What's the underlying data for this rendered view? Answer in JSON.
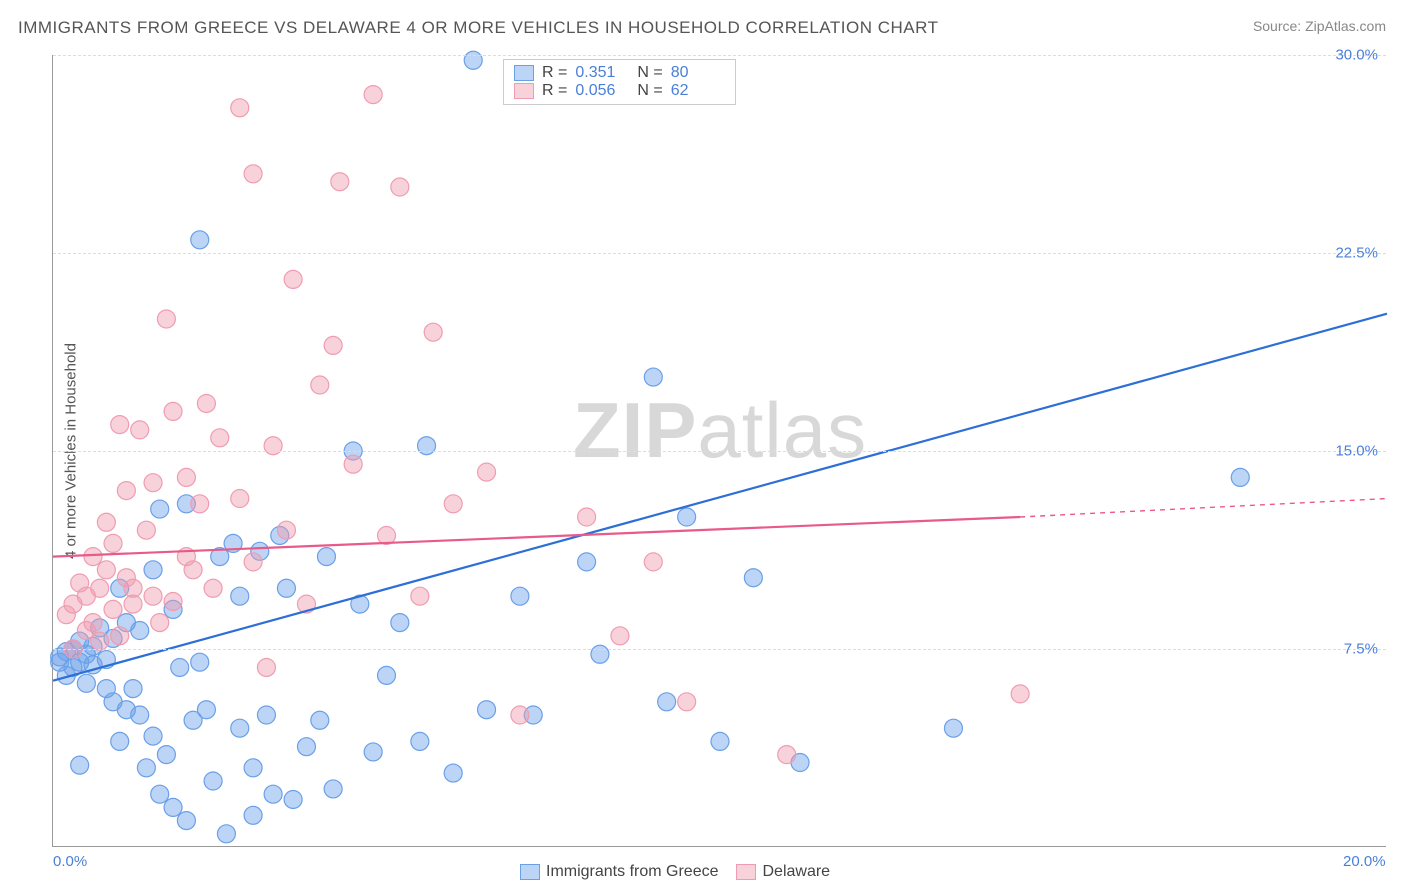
{
  "title": "IMMIGRANTS FROM GREECE VS DELAWARE 4 OR MORE VEHICLES IN HOUSEHOLD CORRELATION CHART",
  "source": "Source: ZipAtlas.com",
  "ylabel": "4 or more Vehicles in Household",
  "watermark": {
    "zip": "ZIP",
    "atlas": "atlas"
  },
  "chart": {
    "type": "scatter-with-regression",
    "background_color": "#ffffff",
    "grid_color": "#dddddd",
    "axis_color": "#999999",
    "tick_label_color": "#4a7fd8",
    "text_color": "#555555",
    "title_fontsize": 17,
    "label_fontsize": 15,
    "xlim": [
      0,
      20
    ],
    "ylim": [
      0,
      30
    ],
    "xtick_labels": [
      "0.0%",
      "20.0%"
    ],
    "xtick_positions": [
      0,
      20
    ],
    "ytick_labels": [
      "7.5%",
      "15.0%",
      "22.5%",
      "30.0%"
    ],
    "ytick_positions": [
      7.5,
      15.0,
      22.5,
      30.0
    ],
    "marker_radius": 9,
    "marker_opacity": 0.55,
    "line_width": 2.2,
    "series": [
      {
        "name": "Immigrants from Greece",
        "key": "greece",
        "color": "#6aa0e8",
        "fill": "rgba(106,160,232,0.45)",
        "line_color": "#2d6fd6",
        "R": "0.351",
        "N": "80",
        "regression": {
          "x1": 0,
          "y1": 6.3,
          "x2": 20,
          "y2": 20.2
        },
        "points": [
          [
            0.1,
            7.0
          ],
          [
            0.1,
            7.2
          ],
          [
            0.2,
            6.5
          ],
          [
            0.3,
            6.8
          ],
          [
            0.2,
            7.4
          ],
          [
            0.4,
            7.0
          ],
          [
            0.3,
            7.5
          ],
          [
            0.4,
            7.8
          ],
          [
            0.5,
            6.2
          ],
          [
            0.5,
            7.3
          ],
          [
            0.6,
            6.9
          ],
          [
            0.6,
            7.6
          ],
          [
            0.7,
            8.3
          ],
          [
            0.8,
            7.1
          ],
          [
            0.8,
            6.0
          ],
          [
            0.9,
            7.9
          ],
          [
            0.9,
            5.5
          ],
          [
            1.0,
            9.8
          ],
          [
            1.0,
            4.0
          ],
          [
            1.1,
            8.5
          ],
          [
            1.1,
            5.2
          ],
          [
            1.2,
            6.0
          ],
          [
            1.3,
            5.0
          ],
          [
            1.3,
            8.2
          ],
          [
            1.4,
            3.0
          ],
          [
            1.5,
            4.2
          ],
          [
            1.5,
            10.5
          ],
          [
            1.6,
            2.0
          ],
          [
            1.6,
            12.8
          ],
          [
            1.7,
            3.5
          ],
          [
            1.8,
            9.0
          ],
          [
            1.8,
            1.5
          ],
          [
            1.9,
            6.8
          ],
          [
            2.0,
            1.0
          ],
          [
            2.0,
            13.0
          ],
          [
            2.1,
            4.8
          ],
          [
            2.2,
            7.0
          ],
          [
            2.2,
            23.0
          ],
          [
            2.3,
            5.2
          ],
          [
            2.4,
            2.5
          ],
          [
            2.5,
            11.0
          ],
          [
            2.6,
            0.5
          ],
          [
            2.7,
            11.5
          ],
          [
            2.8,
            4.5
          ],
          [
            2.8,
            9.5
          ],
          [
            3.0,
            3.0
          ],
          [
            3.0,
            1.2
          ],
          [
            3.1,
            11.2
          ],
          [
            3.2,
            5.0
          ],
          [
            3.3,
            2.0
          ],
          [
            3.4,
            11.8
          ],
          [
            3.5,
            9.8
          ],
          [
            3.6,
            1.8
          ],
          [
            3.8,
            3.8
          ],
          [
            4.0,
            4.8
          ],
          [
            4.1,
            11.0
          ],
          [
            4.2,
            2.2
          ],
          [
            4.5,
            15.0
          ],
          [
            4.6,
            9.2
          ],
          [
            4.8,
            3.6
          ],
          [
            5.0,
            6.5
          ],
          [
            5.2,
            8.5
          ],
          [
            5.5,
            4.0
          ],
          [
            5.6,
            15.2
          ],
          [
            6.0,
            2.8
          ],
          [
            6.3,
            29.8
          ],
          [
            6.5,
            5.2
          ],
          [
            7.0,
            9.5
          ],
          [
            7.2,
            5.0
          ],
          [
            8.0,
            10.8
          ],
          [
            8.2,
            7.3
          ],
          [
            9.0,
            17.8
          ],
          [
            9.2,
            5.5
          ],
          [
            9.5,
            12.5
          ],
          [
            10.0,
            4.0
          ],
          [
            10.5,
            10.2
          ],
          [
            11.2,
            3.2
          ],
          [
            13.5,
            4.5
          ],
          [
            17.8,
            14.0
          ],
          [
            0.4,
            3.1
          ]
        ]
      },
      {
        "name": "Delaware",
        "key": "delaware",
        "color": "#f09cb0",
        "fill": "rgba(240,156,176,0.45)",
        "line_color": "#e85a8a",
        "R": "0.056",
        "N": "62",
        "regression": {
          "x1": 0,
          "y1": 11.0,
          "x2": 14.5,
          "y2": 12.5,
          "x_dash_to": 20,
          "y_dash_to": 13.2
        },
        "points": [
          [
            0.2,
            8.8
          ],
          [
            0.3,
            9.2
          ],
          [
            0.3,
            7.5
          ],
          [
            0.4,
            10.0
          ],
          [
            0.5,
            8.2
          ],
          [
            0.5,
            9.5
          ],
          [
            0.6,
            11.0
          ],
          [
            0.6,
            8.5
          ],
          [
            0.7,
            9.8
          ],
          [
            0.7,
            7.8
          ],
          [
            0.8,
            12.3
          ],
          [
            0.8,
            10.5
          ],
          [
            0.9,
            9.0
          ],
          [
            0.9,
            11.5
          ],
          [
            1.0,
            8.0
          ],
          [
            1.0,
            16.0
          ],
          [
            1.1,
            10.2
          ],
          [
            1.1,
            13.5
          ],
          [
            1.2,
            9.8
          ],
          [
            1.2,
            9.2
          ],
          [
            1.3,
            15.8
          ],
          [
            1.4,
            12.0
          ],
          [
            1.5,
            13.8
          ],
          [
            1.5,
            9.5
          ],
          [
            1.6,
            8.5
          ],
          [
            1.7,
            20.0
          ],
          [
            1.8,
            9.3
          ],
          [
            1.8,
            16.5
          ],
          [
            2.0,
            11.0
          ],
          [
            2.0,
            14.0
          ],
          [
            2.1,
            10.5
          ],
          [
            2.2,
            13.0
          ],
          [
            2.3,
            16.8
          ],
          [
            2.4,
            9.8
          ],
          [
            2.5,
            15.5
          ],
          [
            2.8,
            28.0
          ],
          [
            2.8,
            13.2
          ],
          [
            3.0,
            25.5
          ],
          [
            3.0,
            10.8
          ],
          [
            3.2,
            6.8
          ],
          [
            3.3,
            15.2
          ],
          [
            3.5,
            12.0
          ],
          [
            3.6,
            21.5
          ],
          [
            3.8,
            9.2
          ],
          [
            4.0,
            17.5
          ],
          [
            4.2,
            19.0
          ],
          [
            4.3,
            25.2
          ],
          [
            4.5,
            14.5
          ],
          [
            4.8,
            28.5
          ],
          [
            5.0,
            11.8
          ],
          [
            5.2,
            25.0
          ],
          [
            5.5,
            9.5
          ],
          [
            5.7,
            19.5
          ],
          [
            6.0,
            13.0
          ],
          [
            6.5,
            14.2
          ],
          [
            7.0,
            5.0
          ],
          [
            8.0,
            12.5
          ],
          [
            8.5,
            8.0
          ],
          [
            9.0,
            10.8
          ],
          [
            9.5,
            5.5
          ],
          [
            11.0,
            3.5
          ],
          [
            14.5,
            5.8
          ]
        ]
      }
    ],
    "legend_top": {
      "R_label": "R =",
      "N_label": "N ="
    },
    "legend_bottom_labels": [
      "Immigrants from Greece",
      "Delaware"
    ]
  }
}
